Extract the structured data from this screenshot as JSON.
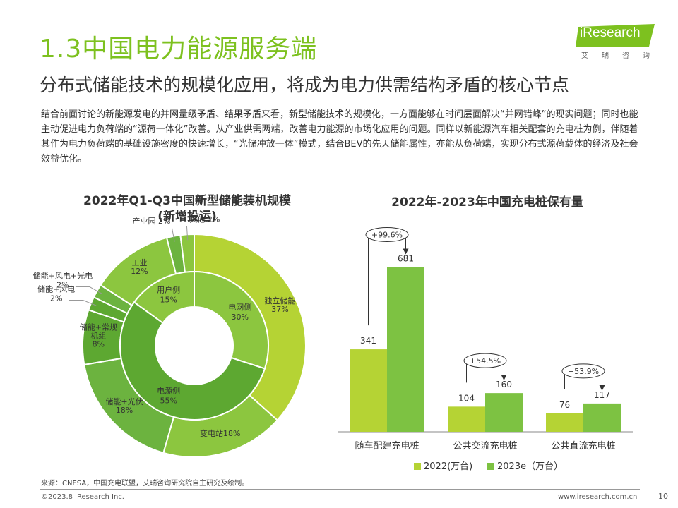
{
  "header": {
    "title": "1.3中国电力能源服务端",
    "subtitle": "分布式储能技术的规模化应用，将成为电力供需结构矛盾的核心节点",
    "body": "结合前面讨论的新能源发电的并网量级矛盾、结果矛盾来看，新型储能技术的规模化，一方面能够在时间层面解决“并网错峰”的现实问题；同时也能主动促进电力负荷端的“源荷一体化”改善。从产业供需两端，改善电力能源的市场化应用的问题。同样以新能源汽车相关配套的充电桩为例，伴随着其作为电力负荷端的基础设施密度的快速增长，“光储冲放一体”模式，结合BEV的先天储能属性，亦能从负荷端，实现分布式源荷载体的经济及社会效益优化。"
  },
  "logo": {
    "name": "iResearch",
    "sub": "艾瑞咨询"
  },
  "chart_data": [
    {
      "type": "pie",
      "title": "2022年Q1-Q3中国新型储能装机规模（新增投运）",
      "title_lines": [
        "2022年Q1-Q3中国新型储能装机规模",
        "(新增投运)"
      ],
      "inner": [
        {
          "name": "电网侧",
          "value": 30
        },
        {
          "name": "电源侧",
          "value": 55
        },
        {
          "name": "用户侧",
          "value": 15
        }
      ],
      "outer": [
        {
          "name": "独立储能",
          "value": 37
        },
        {
          "name": "变电站",
          "value": 18
        },
        {
          "name": "储能+光伏",
          "value": 18
        },
        {
          "name": "储能+常规机组",
          "value": 8
        },
        {
          "name": "储能+风电",
          "value": 2
        },
        {
          "name": "储能+风电+光电",
          "value": 2
        },
        {
          "name": "工业",
          "value": 12
        },
        {
          "name": "产业园",
          "value": 2
        },
        {
          "name": "其他",
          "value": 2
        }
      ],
      "labels": {
        "inner": [
          {
            "lines": [
              "电网侧",
              "30%"
            ]
          },
          {
            "lines": [
              "电源侧",
              "55%"
            ]
          },
          {
            "lines": [
              "用户侧",
              "15%"
            ]
          }
        ],
        "outer": [
          {
            "lines": [
              "独立储能",
              "37%"
            ]
          },
          {
            "lines": [
              "变电站18%"
            ]
          },
          {
            "lines": [
              "储能+光伏",
              "18%"
            ]
          },
          {
            "lines": [
              "储能+常规",
              "机组",
              "8%"
            ]
          },
          {
            "lines": [
              "储能+风电",
              "2%"
            ]
          },
          {
            "lines": [
              "储能+风电+光电",
              "2%"
            ]
          },
          {
            "lines": [
              "工业",
              "12%"
            ]
          },
          {
            "lines": [
              "产业园 2%"
            ]
          },
          {
            "lines": [
              "其他  2%"
            ]
          }
        ]
      },
      "colors": {
        "inner": [
          "#8cc63f",
          "#5da831",
          "#8cc63f"
        ],
        "outer": [
          "#b5d334",
          "#8cc63f",
          "#6cb33f",
          "#5da831",
          "#5da831",
          "#6cb33f",
          "#8cc63f",
          "#6cb33f",
          "#8cc63f"
        ],
        "separator": "#ffffff"
      }
    },
    {
      "type": "bar",
      "title": "2022年-2023年中国充电桩保有量",
      "categories": [
        "随车配建充电桩",
        "公共交流充电桩",
        "公共直流充电桩"
      ],
      "series": [
        {
          "name": "2022(万台)",
          "values": [
            341,
            104,
            76
          ],
          "color": "#b5d334"
        },
        {
          "name": "2023e（万台）",
          "values": [
            681,
            160,
            117
          ],
          "color": "#7dc242"
        }
      ],
      "growth_labels": [
        "+99.6%",
        "+54.5%",
        "+53.9%"
      ],
      "ylim": [
        0,
        700
      ],
      "legend_position": "bottom",
      "grid": false
    }
  ],
  "footer": {
    "source": "来源：CNESA，中国充电联盟，艾瑞咨询研究院自主研究及绘制。",
    "copyright": "©2023.8 iResearch Inc.",
    "website": "www.iresearch.com.cn",
    "page": "10"
  },
  "theme": {
    "accent": "#7dc11f"
  }
}
